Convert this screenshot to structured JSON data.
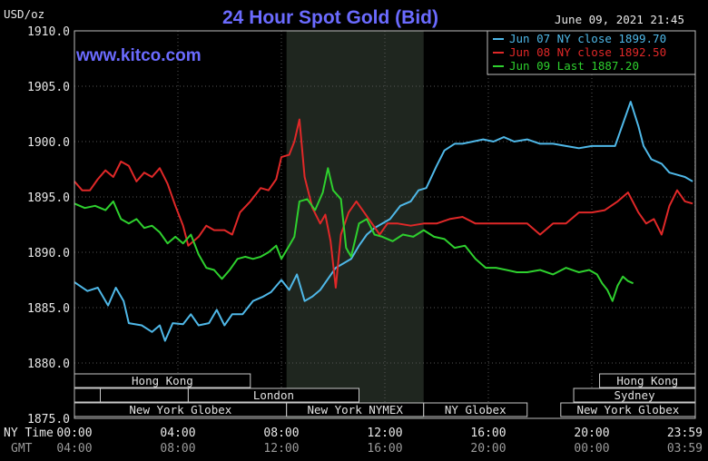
{
  "header": {
    "title": "24 Hour Spot Gold (Bid)",
    "unit": "USD/oz",
    "website": "www.kitco.com",
    "timestamp": "June 09, 2021 21:45"
  },
  "legend": [
    {
      "label": "Jun 07 NY close 1899.70",
      "color": "#4fb8e8"
    },
    {
      "label": "Jun 08 NY close 1892.50",
      "color": "#e02828"
    },
    {
      "label": "Jun 09 Last 1887.20",
      "color": "#2ed02e"
    }
  ],
  "axis": {
    "ny_time_label": "NY Time",
    "gmt_label": "GMT"
  },
  "sessions": [
    {
      "name": "Hong Kong",
      "row": 0,
      "start": 0,
      "end": 6.8
    },
    {
      "name": "Hong Kong",
      "row": 0,
      "start": 20.3,
      "end": 24
    },
    {
      "name": "",
      "row": 1,
      "start": 0,
      "end": 1
    },
    {
      "name": "",
      "row": 1,
      "start": 1,
      "end": 4.4
    },
    {
      "name": "London",
      "row": 1,
      "start": 4.4,
      "end": 11
    },
    {
      "name": "Sydney",
      "row": 1,
      "start": 19.3,
      "end": 24
    },
    {
      "name": "New York Globex",
      "row": 2,
      "start": 0,
      "end": 8.2
    },
    {
      "name": "New York NYMEX",
      "row": 2,
      "start": 8.2,
      "end": 13.5
    },
    {
      "name": "NY Globex",
      "row": 2,
      "start": 13.5,
      "end": 17.5
    },
    {
      "name": "New York Globex",
      "row": 2,
      "start": 18.8,
      "end": 24
    }
  ],
  "chart_data": {
    "type": "line",
    "title": "24 Hour Spot Gold (Bid)",
    "ylabel": "USD/oz",
    "ylim": [
      1875.0,
      1910.0
    ],
    "xlim": [
      0,
      24
    ],
    "yticks": [
      "1910.0",
      "1905.0",
      "1900.0",
      "1895.0",
      "1890.0",
      "1885.0",
      "1880.0",
      "1875.0"
    ],
    "xticks_ny": [
      "00:00",
      "04:00",
      "08:00",
      "12:00",
      "16:00",
      "20:00",
      "23:59"
    ],
    "xticks_gmt": [
      "04:00",
      "08:00",
      "12:00",
      "16:00",
      "20:00",
      "00:00",
      "03:59"
    ],
    "nymex_shade": [
      8.2,
      13.5
    ],
    "grid": true,
    "legend_position": "top-right",
    "series": [
      {
        "name": "Jun 07 NY close 1899.70",
        "color": "#4fb8e8",
        "points": [
          [
            0,
            1887.3
          ],
          [
            0.5,
            1886.5
          ],
          [
            0.9,
            1886.8
          ],
          [
            1.3,
            1885.2
          ],
          [
            1.6,
            1886.8
          ],
          [
            1.9,
            1885.6
          ],
          [
            2.1,
            1883.6
          ],
          [
            2.6,
            1883.4
          ],
          [
            3.0,
            1882.8
          ],
          [
            3.3,
            1883.4
          ],
          [
            3.5,
            1882.0
          ],
          [
            3.8,
            1883.6
          ],
          [
            4.2,
            1883.5
          ],
          [
            4.5,
            1884.4
          ],
          [
            4.8,
            1883.4
          ],
          [
            5.2,
            1883.6
          ],
          [
            5.5,
            1884.8
          ],
          [
            5.8,
            1883.4
          ],
          [
            6.1,
            1884.4
          ],
          [
            6.5,
            1884.4
          ],
          [
            6.9,
            1885.6
          ],
          [
            7.3,
            1886.0
          ],
          [
            7.6,
            1886.4
          ],
          [
            8.0,
            1887.5
          ],
          [
            8.3,
            1886.6
          ],
          [
            8.6,
            1888.0
          ],
          [
            8.9,
            1885.6
          ],
          [
            9.2,
            1886.0
          ],
          [
            9.5,
            1886.6
          ],
          [
            9.8,
            1887.6
          ],
          [
            10.1,
            1888.6
          ],
          [
            10.4,
            1889.0
          ],
          [
            10.7,
            1889.4
          ],
          [
            11.0,
            1890.6
          ],
          [
            11.3,
            1891.6
          ],
          [
            11.6,
            1892.2
          ],
          [
            11.9,
            1892.6
          ],
          [
            12.2,
            1893.0
          ],
          [
            12.6,
            1894.2
          ],
          [
            13.0,
            1894.6
          ],
          [
            13.3,
            1895.6
          ],
          [
            13.6,
            1895.8
          ],
          [
            14.0,
            1897.8
          ],
          [
            14.3,
            1899.2
          ],
          [
            14.7,
            1899.8
          ],
          [
            15.0,
            1899.8
          ],
          [
            15.4,
            1900.0
          ],
          [
            15.8,
            1900.2
          ],
          [
            16.2,
            1900.0
          ],
          [
            16.6,
            1900.4
          ],
          [
            17.0,
            1900.0
          ],
          [
            17.5,
            1900.2
          ],
          [
            18.0,
            1899.8
          ],
          [
            18.5,
            1899.8
          ],
          [
            19.0,
            1899.6
          ],
          [
            19.5,
            1899.4
          ],
          [
            20.0,
            1899.6
          ],
          [
            20.5,
            1899.6
          ],
          [
            20.9,
            1899.6
          ],
          [
            21.2,
            1901.6
          ],
          [
            21.5,
            1903.6
          ],
          [
            21.8,
            1901.4
          ],
          [
            22.0,
            1899.6
          ],
          [
            22.3,
            1898.4
          ],
          [
            22.7,
            1898.0
          ],
          [
            23.0,
            1897.2
          ],
          [
            23.3,
            1897.0
          ],
          [
            23.6,
            1896.8
          ],
          [
            23.9,
            1896.4
          ]
        ]
      },
      {
        "name": "Jun 08 NY close 1892.50",
        "color": "#e02828",
        "points": [
          [
            0,
            1896.4
          ],
          [
            0.3,
            1895.6
          ],
          [
            0.6,
            1895.6
          ],
          [
            0.9,
            1896.6
          ],
          [
            1.2,
            1897.4
          ],
          [
            1.5,
            1896.8
          ],
          [
            1.8,
            1898.2
          ],
          [
            2.1,
            1897.8
          ],
          [
            2.4,
            1896.4
          ],
          [
            2.7,
            1897.2
          ],
          [
            3.0,
            1896.8
          ],
          [
            3.3,
            1897.6
          ],
          [
            3.6,
            1896.2
          ],
          [
            3.9,
            1894.2
          ],
          [
            4.2,
            1892.4
          ],
          [
            4.4,
            1890.6
          ],
          [
            4.8,
            1891.4
          ],
          [
            5.1,
            1892.4
          ],
          [
            5.4,
            1892.0
          ],
          [
            5.8,
            1892.0
          ],
          [
            6.1,
            1891.6
          ],
          [
            6.4,
            1893.6
          ],
          [
            6.8,
            1894.6
          ],
          [
            7.2,
            1895.8
          ],
          [
            7.5,
            1895.6
          ],
          [
            7.8,
            1896.6
          ],
          [
            8.0,
            1898.6
          ],
          [
            8.3,
            1898.8
          ],
          [
            8.5,
            1900.0
          ],
          [
            8.7,
            1902.0
          ],
          [
            8.9,
            1896.8
          ],
          [
            9.2,
            1894.0
          ],
          [
            9.5,
            1892.6
          ],
          [
            9.7,
            1893.4
          ],
          [
            9.9,
            1891.0
          ],
          [
            10.1,
            1886.8
          ],
          [
            10.3,
            1891.6
          ],
          [
            10.6,
            1893.6
          ],
          [
            10.9,
            1894.6
          ],
          [
            11.2,
            1893.6
          ],
          [
            11.5,
            1892.6
          ],
          [
            11.8,
            1891.6
          ],
          [
            12.1,
            1892.6
          ],
          [
            12.5,
            1892.6
          ],
          [
            13.0,
            1892.4
          ],
          [
            13.5,
            1892.6
          ],
          [
            14.0,
            1892.6
          ],
          [
            14.5,
            1893.0
          ],
          [
            15.0,
            1893.2
          ],
          [
            15.5,
            1892.6
          ],
          [
            16.0,
            1892.6
          ],
          [
            16.5,
            1892.6
          ],
          [
            17.0,
            1892.6
          ],
          [
            17.5,
            1892.6
          ],
          [
            18.0,
            1891.6
          ],
          [
            18.5,
            1892.6
          ],
          [
            19.0,
            1892.6
          ],
          [
            19.5,
            1893.6
          ],
          [
            20.0,
            1893.6
          ],
          [
            20.5,
            1893.8
          ],
          [
            21.0,
            1894.6
          ],
          [
            21.4,
            1895.4
          ],
          [
            21.8,
            1893.6
          ],
          [
            22.1,
            1892.6
          ],
          [
            22.4,
            1893.0
          ],
          [
            22.7,
            1891.6
          ],
          [
            23.0,
            1894.2
          ],
          [
            23.3,
            1895.6
          ],
          [
            23.6,
            1894.6
          ],
          [
            23.9,
            1894.4
          ]
        ]
      },
      {
        "name": "Jun 09 Last 1887.20",
        "color": "#2ed02e",
        "points": [
          [
            0,
            1894.4
          ],
          [
            0.4,
            1894.0
          ],
          [
            0.8,
            1894.2
          ],
          [
            1.2,
            1893.8
          ],
          [
            1.5,
            1894.6
          ],
          [
            1.8,
            1893.0
          ],
          [
            2.1,
            1892.6
          ],
          [
            2.4,
            1893.0
          ],
          [
            2.7,
            1892.2
          ],
          [
            3.0,
            1892.4
          ],
          [
            3.3,
            1891.8
          ],
          [
            3.6,
            1890.8
          ],
          [
            3.9,
            1891.4
          ],
          [
            4.2,
            1890.8
          ],
          [
            4.5,
            1891.6
          ],
          [
            4.8,
            1889.8
          ],
          [
            5.1,
            1888.6
          ],
          [
            5.4,
            1888.4
          ],
          [
            5.7,
            1887.6
          ],
          [
            6.0,
            1888.4
          ],
          [
            6.3,
            1889.4
          ],
          [
            6.6,
            1889.6
          ],
          [
            6.9,
            1889.4
          ],
          [
            7.2,
            1889.6
          ],
          [
            7.5,
            1890.0
          ],
          [
            7.8,
            1890.6
          ],
          [
            8.0,
            1889.4
          ],
          [
            8.3,
            1890.6
          ],
          [
            8.5,
            1891.4
          ],
          [
            8.7,
            1894.6
          ],
          [
            9.0,
            1894.8
          ],
          [
            9.3,
            1893.8
          ],
          [
            9.6,
            1895.4
          ],
          [
            9.8,
            1897.6
          ],
          [
            10.0,
            1895.6
          ],
          [
            10.3,
            1894.8
          ],
          [
            10.5,
            1890.4
          ],
          [
            10.7,
            1889.6
          ],
          [
            11.0,
            1892.6
          ],
          [
            11.3,
            1893.0
          ],
          [
            11.6,
            1891.6
          ],
          [
            11.9,
            1891.4
          ],
          [
            12.3,
            1891.0
          ],
          [
            12.7,
            1891.6
          ],
          [
            13.1,
            1891.4
          ],
          [
            13.5,
            1892.0
          ],
          [
            13.9,
            1891.4
          ],
          [
            14.3,
            1891.2
          ],
          [
            14.7,
            1890.4
          ],
          [
            15.1,
            1890.6
          ],
          [
            15.5,
            1889.4
          ],
          [
            15.9,
            1888.6
          ],
          [
            16.3,
            1888.6
          ],
          [
            16.7,
            1888.4
          ],
          [
            17.1,
            1888.2
          ],
          [
            17.5,
            1888.2
          ],
          [
            18.0,
            1888.4
          ],
          [
            18.5,
            1888.0
          ],
          [
            19.0,
            1888.6
          ],
          [
            19.5,
            1888.2
          ],
          [
            19.9,
            1888.4
          ],
          [
            20.2,
            1888.0
          ],
          [
            20.4,
            1887.2
          ],
          [
            20.6,
            1886.6
          ],
          [
            20.8,
            1885.6
          ],
          [
            21.0,
            1887.0
          ],
          [
            21.2,
            1887.8
          ],
          [
            21.4,
            1887.4
          ],
          [
            21.6,
            1887.2
          ]
        ]
      }
    ]
  }
}
